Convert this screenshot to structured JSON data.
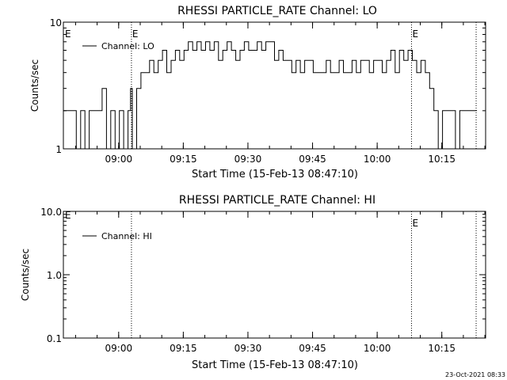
{
  "footer": {
    "date_stamp": "23-Oct-2021 08:33"
  },
  "chart_data": [
    {
      "type": "line",
      "title": "RHESSI PARTICLE_RATE Channel: LO",
      "xlabel": "Start Time (15-Feb-13 08:47:10)",
      "ylabel": "Counts/sec",
      "x_unit": "minutes after 08:47:10",
      "xlim": [
        0,
        98
      ],
      "ylim": [
        1,
        10
      ],
      "yscale": "log",
      "yticks": [
        "1",
        "10"
      ],
      "xticks": [
        "09:00",
        "09:15",
        "09:30",
        "09:45",
        "10:00",
        "10:15"
      ],
      "legend": {
        "position": "top-left",
        "entries": [
          "Channel: LO"
        ]
      },
      "vlines": [
        {
          "x": 15.8,
          "label": "E"
        },
        {
          "x": 80.8,
          "label": "E"
        },
        {
          "x": 95.8,
          "label": ""
        }
      ],
      "corner_marker": "E",
      "series": [
        {
          "name": "Channel: LO",
          "x": [
            0,
            1,
            2,
            3,
            4,
            5,
            6,
            7,
            8,
            9,
            10,
            11,
            12,
            13,
            14,
            15,
            15.6,
            16,
            17,
            18,
            19,
            20,
            21,
            22,
            23,
            24,
            25,
            26,
            27,
            28,
            29,
            30,
            31,
            32,
            33,
            34,
            35,
            36,
            37,
            38,
            39,
            40,
            41,
            42,
            43,
            44,
            45,
            46,
            47,
            48,
            49,
            50,
            51,
            52,
            53,
            54,
            55,
            56,
            57,
            58,
            59,
            60,
            61,
            62,
            63,
            64,
            65,
            66,
            67,
            68,
            69,
            70,
            71,
            72,
            73,
            74,
            75,
            76,
            77,
            78,
            79,
            80,
            81,
            82,
            83,
            84,
            85,
            86,
            87,
            88,
            89,
            90,
            91,
            92,
            93,
            94,
            95
          ],
          "values": [
            2,
            2,
            2,
            1,
            2,
            1,
            2,
            2,
            2,
            3,
            1,
            2,
            1,
            2,
            1,
            2,
            3,
            1,
            3,
            4,
            4,
            5,
            4,
            5,
            6,
            4,
            5,
            6,
            5,
            6,
            7,
            6,
            7,
            6,
            7,
            6,
            7,
            5,
            6,
            7,
            6,
            5,
            6,
            7,
            6,
            6,
            7,
            6,
            7,
            7,
            5,
            6,
            5,
            5,
            4,
            5,
            4,
            5,
            5,
            4,
            4,
            4,
            5,
            4,
            4,
            5,
            4,
            4,
            5,
            4,
            5,
            5,
            4,
            5,
            5,
            4,
            5,
            6,
            4,
            6,
            5,
            6,
            5,
            4,
            5,
            4,
            3,
            2,
            1,
            2,
            2,
            2,
            1,
            2,
            2,
            2,
            2
          ]
        }
      ]
    },
    {
      "type": "line",
      "title": "RHESSI PARTICLE_RATE Channel: HI",
      "xlabel": "Start Time (15-Feb-13 08:47:10)",
      "ylabel": "Counts/sec",
      "x_unit": "minutes after 08:47:10",
      "xlim": [
        0,
        98
      ],
      "ylim": [
        0.1,
        10
      ],
      "yscale": "log",
      "yticks": [
        "0.1",
        "1.0",
        "10.0"
      ],
      "xticks": [
        "09:00",
        "09:15",
        "09:30",
        "09:45",
        "10:00",
        "10:15"
      ],
      "legend": {
        "position": "top-left",
        "entries": [
          "Channel: HI"
        ]
      },
      "vlines": [
        {
          "x": 15.8,
          "label": ""
        },
        {
          "x": 80.8,
          "label": "E"
        },
        {
          "x": 95.8,
          "label": ""
        }
      ],
      "corner_marker": "E",
      "series": [
        {
          "name": "Channel: HI",
          "x": [],
          "values": []
        }
      ]
    }
  ]
}
